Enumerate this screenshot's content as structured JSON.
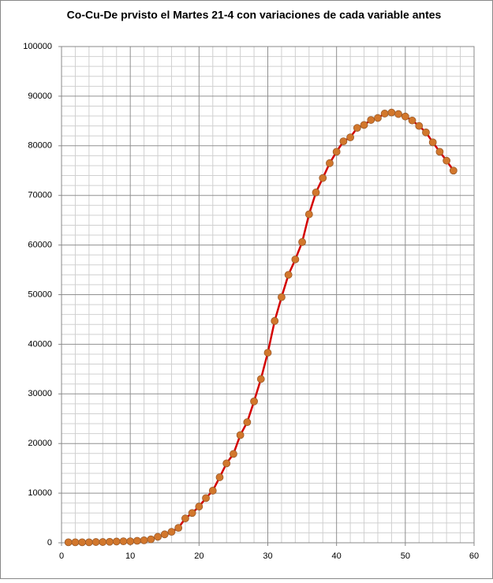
{
  "chart_data": {
    "type": "line",
    "title": "Co-Cu-De prvisto el Martes 21-4 con variaciones de  cada variable antes",
    "x": [
      1,
      2,
      3,
      4,
      5,
      6,
      7,
      8,
      9,
      10,
      11,
      12,
      13,
      14,
      15,
      16,
      17,
      18,
      19,
      20,
      21,
      22,
      23,
      24,
      25,
      26,
      27,
      28,
      29,
      30,
      31,
      32,
      33,
      34,
      35,
      36,
      37,
      38,
      39,
      40,
      41,
      42,
      43,
      44,
      45,
      46,
      47,
      48,
      49,
      50,
      51,
      52,
      53,
      54,
      55,
      56,
      57
    ],
    "series": [
      {
        "color": "#d40000",
        "marker_color": "#d2772c",
        "values": [
          100,
          100,
          100,
          100,
          150,
          150,
          200,
          250,
          300,
          300,
          400,
          500,
          700,
          1200,
          1700,
          2200,
          3000,
          4900,
          6000,
          7300,
          9000,
          10500,
          13200,
          16000,
          17900,
          21700,
          24300,
          28500,
          33000,
          38300,
          44700,
          49500,
          54000,
          57100,
          60600,
          66200,
          70600,
          73500,
          76500,
          78800,
          80900,
          81700,
          83600,
          84200,
          85200,
          85600,
          86500,
          86700,
          86400,
          85900,
          85100,
          84000,
          82700,
          80700,
          78800,
          77000,
          75000
        ]
      }
    ],
    "xlim": [
      0,
      60
    ],
    "xticks": [
      0,
      10,
      20,
      30,
      40,
      50,
      60
    ],
    "ylim": [
      0,
      100000
    ],
    "yticks": [
      0,
      10000,
      20000,
      30000,
      40000,
      50000,
      60000,
      70000,
      80000,
      90000,
      100000
    ],
    "grid": true
  }
}
